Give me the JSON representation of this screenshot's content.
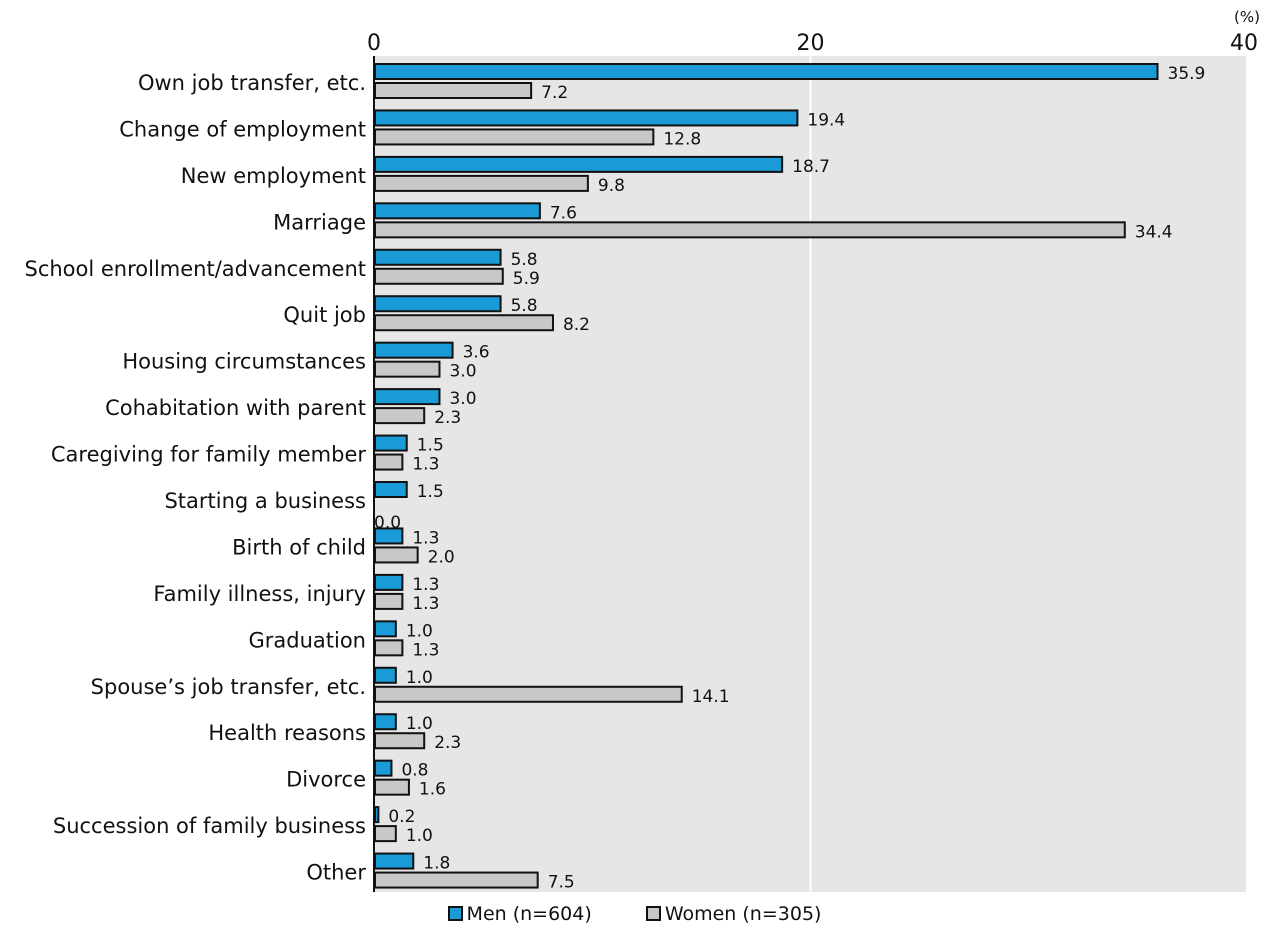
{
  "chart_data": {
    "type": "bar",
    "orientation": "horizontal",
    "unit": "(%)",
    "xlim": [
      0,
      40
    ],
    "xticks": [
      "0",
      "20",
      "40"
    ],
    "grid": true,
    "legend_position": "bottom",
    "categories": [
      "Own job transfer, etc.",
      "Change of employment",
      "New employment",
      "Marriage",
      "School enrollment/advancement",
      "Quit job",
      "Housing circumstances",
      "Cohabitation with parent",
      "Caregiving for family member",
      "Starting a business",
      "Birth of child",
      "Family illness, injury",
      "Graduation",
      "Spouse’s job transfer, etc.",
      "Health reasons",
      "Divorce",
      "Succession of family business",
      "Other"
    ],
    "series": [
      {
        "name": "Men (n=604)",
        "color": "#1a9ad6",
        "values": [
          35.9,
          19.4,
          18.7,
          7.6,
          5.8,
          5.8,
          3.6,
          3.0,
          1.5,
          1.5,
          1.3,
          1.3,
          1.0,
          1.0,
          1.0,
          0.8,
          0.2,
          1.8
        ],
        "labels": [
          "35.9",
          "19.4",
          "18.7",
          "7.6",
          "5.8",
          "5.8",
          "3.6",
          "3.0",
          "1.5",
          "1.5",
          "1.3",
          "1.3",
          "1.0",
          "1.0",
          "1.0",
          "0.8",
          "0.2",
          "1.8"
        ]
      },
      {
        "name": "Women (n=305)",
        "color": "#c8c8c8",
        "values": [
          7.2,
          12.8,
          9.8,
          34.4,
          5.9,
          8.2,
          3.0,
          2.3,
          1.3,
          0.0,
          2.0,
          1.3,
          1.3,
          14.1,
          2.3,
          1.6,
          1.0,
          7.5
        ],
        "labels": [
          "7.2",
          "12.8",
          "9.8",
          "34.4",
          "5.9",
          "8.2",
          "3.0",
          "2.3",
          "1.3",
          "0.0",
          "2.0",
          "1.3",
          "1.3",
          "14.1",
          "2.3",
          "1.6",
          "1.0",
          "7.5"
        ]
      }
    ],
    "plot_background": "#e6e6e6",
    "gridline_color": "#ffffff"
  }
}
